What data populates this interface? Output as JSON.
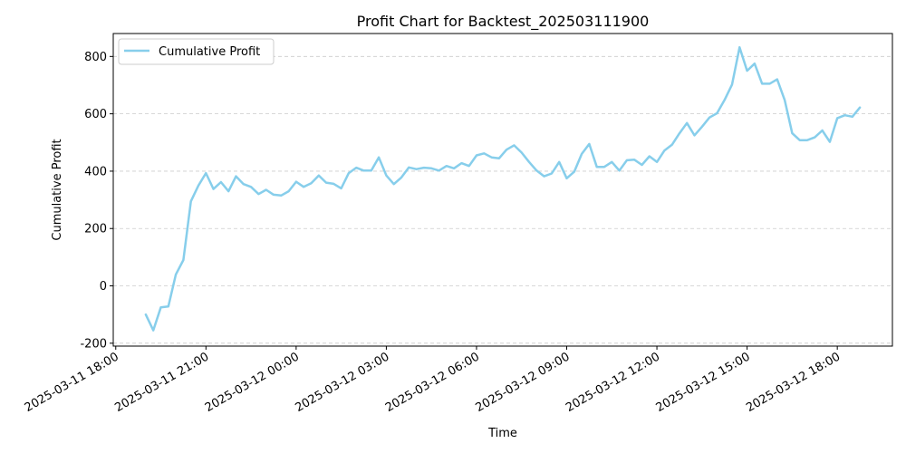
{
  "chart_data": {
    "type": "line",
    "title": "Profit Chart for Backtest_202503111900",
    "xlabel": "Time",
    "ylabel": "Cumulative Profit",
    "x_axis_type": "datetime",
    "xlim": [
      "2025-03-11 17:55",
      "2025-03-12 19:50"
    ],
    "ylim": [
      -210,
      880
    ],
    "x_tick_labels": [
      {
        "t": "2025-03-11 18:00",
        "label": "2025-03-11 18:00"
      },
      {
        "t": "2025-03-11 21:00",
        "label": "2025-03-11 21:00"
      },
      {
        "t": "2025-03-12 00:00",
        "label": "2025-03-12 00:00"
      },
      {
        "t": "2025-03-12 03:00",
        "label": "2025-03-12 03:00"
      },
      {
        "t": "2025-03-12 06:00",
        "label": "2025-03-12 06:00"
      },
      {
        "t": "2025-03-12 09:00",
        "label": "2025-03-12 09:00"
      },
      {
        "t": "2025-03-12 12:00",
        "label": "2025-03-12 12:00"
      },
      {
        "t": "2025-03-12 15:00",
        "label": "2025-03-12 15:00"
      },
      {
        "t": "2025-03-12 18:00",
        "label": "2025-03-12 18:00"
      }
    ],
    "y_ticks": [
      -200,
      0,
      200,
      400,
      600,
      800
    ],
    "grid": "horizontal dashed",
    "legend_position": "upper-left",
    "series": [
      {
        "name": "Cumulative Profit",
        "color": "#87ceeb",
        "points": [
          [
            "2025-03-11 19:00",
            -100
          ],
          [
            "2025-03-11 19:15",
            -155
          ],
          [
            "2025-03-11 19:30",
            -75
          ],
          [
            "2025-03-11 19:45",
            -72
          ],
          [
            "2025-03-11 20:00",
            40
          ],
          [
            "2025-03-11 20:15",
            90
          ],
          [
            "2025-03-11 20:30",
            295
          ],
          [
            "2025-03-11 20:45",
            350
          ],
          [
            "2025-03-11 21:00",
            393
          ],
          [
            "2025-03-11 21:15",
            338
          ],
          [
            "2025-03-11 21:30",
            362
          ],
          [
            "2025-03-11 21:45",
            330
          ],
          [
            "2025-03-11 22:00",
            382
          ],
          [
            "2025-03-11 22:15",
            355
          ],
          [
            "2025-03-11 22:30",
            345
          ],
          [
            "2025-03-11 22:45",
            320
          ],
          [
            "2025-03-11 23:00",
            335
          ],
          [
            "2025-03-11 23:15",
            318
          ],
          [
            "2025-03-11 23:30",
            315
          ],
          [
            "2025-03-11 23:45",
            330
          ],
          [
            "2025-03-12 00:00",
            363
          ],
          [
            "2025-03-12 00:15",
            345
          ],
          [
            "2025-03-12 00:30",
            358
          ],
          [
            "2025-03-12 00:45",
            385
          ],
          [
            "2025-03-12 01:00",
            360
          ],
          [
            "2025-03-12 01:15",
            356
          ],
          [
            "2025-03-12 01:30",
            340
          ],
          [
            "2025-03-12 01:45",
            393
          ],
          [
            "2025-03-12 02:00",
            412
          ],
          [
            "2025-03-12 02:15",
            402
          ],
          [
            "2025-03-12 02:30",
            402
          ],
          [
            "2025-03-12 02:45",
            448
          ],
          [
            "2025-03-12 03:00",
            385
          ],
          [
            "2025-03-12 03:15",
            355
          ],
          [
            "2025-03-12 03:30",
            378
          ],
          [
            "2025-03-12 03:45",
            413
          ],
          [
            "2025-03-12 04:00",
            407
          ],
          [
            "2025-03-12 04:15",
            412
          ],
          [
            "2025-03-12 04:30",
            410
          ],
          [
            "2025-03-12 04:45",
            402
          ],
          [
            "2025-03-12 05:00",
            418
          ],
          [
            "2025-03-12 05:15",
            410
          ],
          [
            "2025-03-12 05:30",
            428
          ],
          [
            "2025-03-12 05:45",
            418
          ],
          [
            "2025-03-12 06:00",
            455
          ],
          [
            "2025-03-12 06:15",
            462
          ],
          [
            "2025-03-12 06:30",
            448
          ],
          [
            "2025-03-12 06:45",
            445
          ],
          [
            "2025-03-12 07:00",
            475
          ],
          [
            "2025-03-12 07:15",
            490
          ],
          [
            "2025-03-12 07:30",
            465
          ],
          [
            "2025-03-12 07:45",
            432
          ],
          [
            "2025-03-12 08:00",
            402
          ],
          [
            "2025-03-12 08:15",
            382
          ],
          [
            "2025-03-12 08:30",
            392
          ],
          [
            "2025-03-12 08:45",
            432
          ],
          [
            "2025-03-12 09:00",
            375
          ],
          [
            "2025-03-12 09:15",
            398
          ],
          [
            "2025-03-12 09:30",
            460
          ],
          [
            "2025-03-12 09:45",
            495
          ],
          [
            "2025-03-12 10:00",
            415
          ],
          [
            "2025-03-12 10:15",
            415
          ],
          [
            "2025-03-12 10:30",
            432
          ],
          [
            "2025-03-12 10:45",
            402
          ],
          [
            "2025-03-12 11:00",
            438
          ],
          [
            "2025-03-12 11:15",
            440
          ],
          [
            "2025-03-12 11:30",
            422
          ],
          [
            "2025-03-12 11:45",
            452
          ],
          [
            "2025-03-12 12:00",
            432
          ],
          [
            "2025-03-12 12:15",
            472
          ],
          [
            "2025-03-12 12:30",
            492
          ],
          [
            "2025-03-12 12:45",
            532
          ],
          [
            "2025-03-12 13:00",
            568
          ],
          [
            "2025-03-12 13:15",
            525
          ],
          [
            "2025-03-12 13:30",
            555
          ],
          [
            "2025-03-12 13:45",
            587
          ],
          [
            "2025-03-12 14:00",
            602
          ],
          [
            "2025-03-12 14:15",
            648
          ],
          [
            "2025-03-12 14:30",
            702
          ],
          [
            "2025-03-12 14:45",
            832
          ],
          [
            "2025-03-12 15:00",
            750
          ],
          [
            "2025-03-12 15:15",
            775
          ],
          [
            "2025-03-12 15:30",
            705
          ],
          [
            "2025-03-12 15:45",
            705
          ],
          [
            "2025-03-12 16:00",
            720
          ],
          [
            "2025-03-12 16:15",
            648
          ],
          [
            "2025-03-12 16:30",
            532
          ],
          [
            "2025-03-12 16:45",
            508
          ],
          [
            "2025-03-12 17:00",
            508
          ],
          [
            "2025-03-12 17:15",
            518
          ],
          [
            "2025-03-12 17:30",
            542
          ],
          [
            "2025-03-12 17:45",
            502
          ],
          [
            "2025-03-12 18:00",
            585
          ],
          [
            "2025-03-12 18:15",
            595
          ],
          [
            "2025-03-12 18:30",
            590
          ],
          [
            "2025-03-12 18:45",
            622
          ]
        ]
      }
    ]
  }
}
